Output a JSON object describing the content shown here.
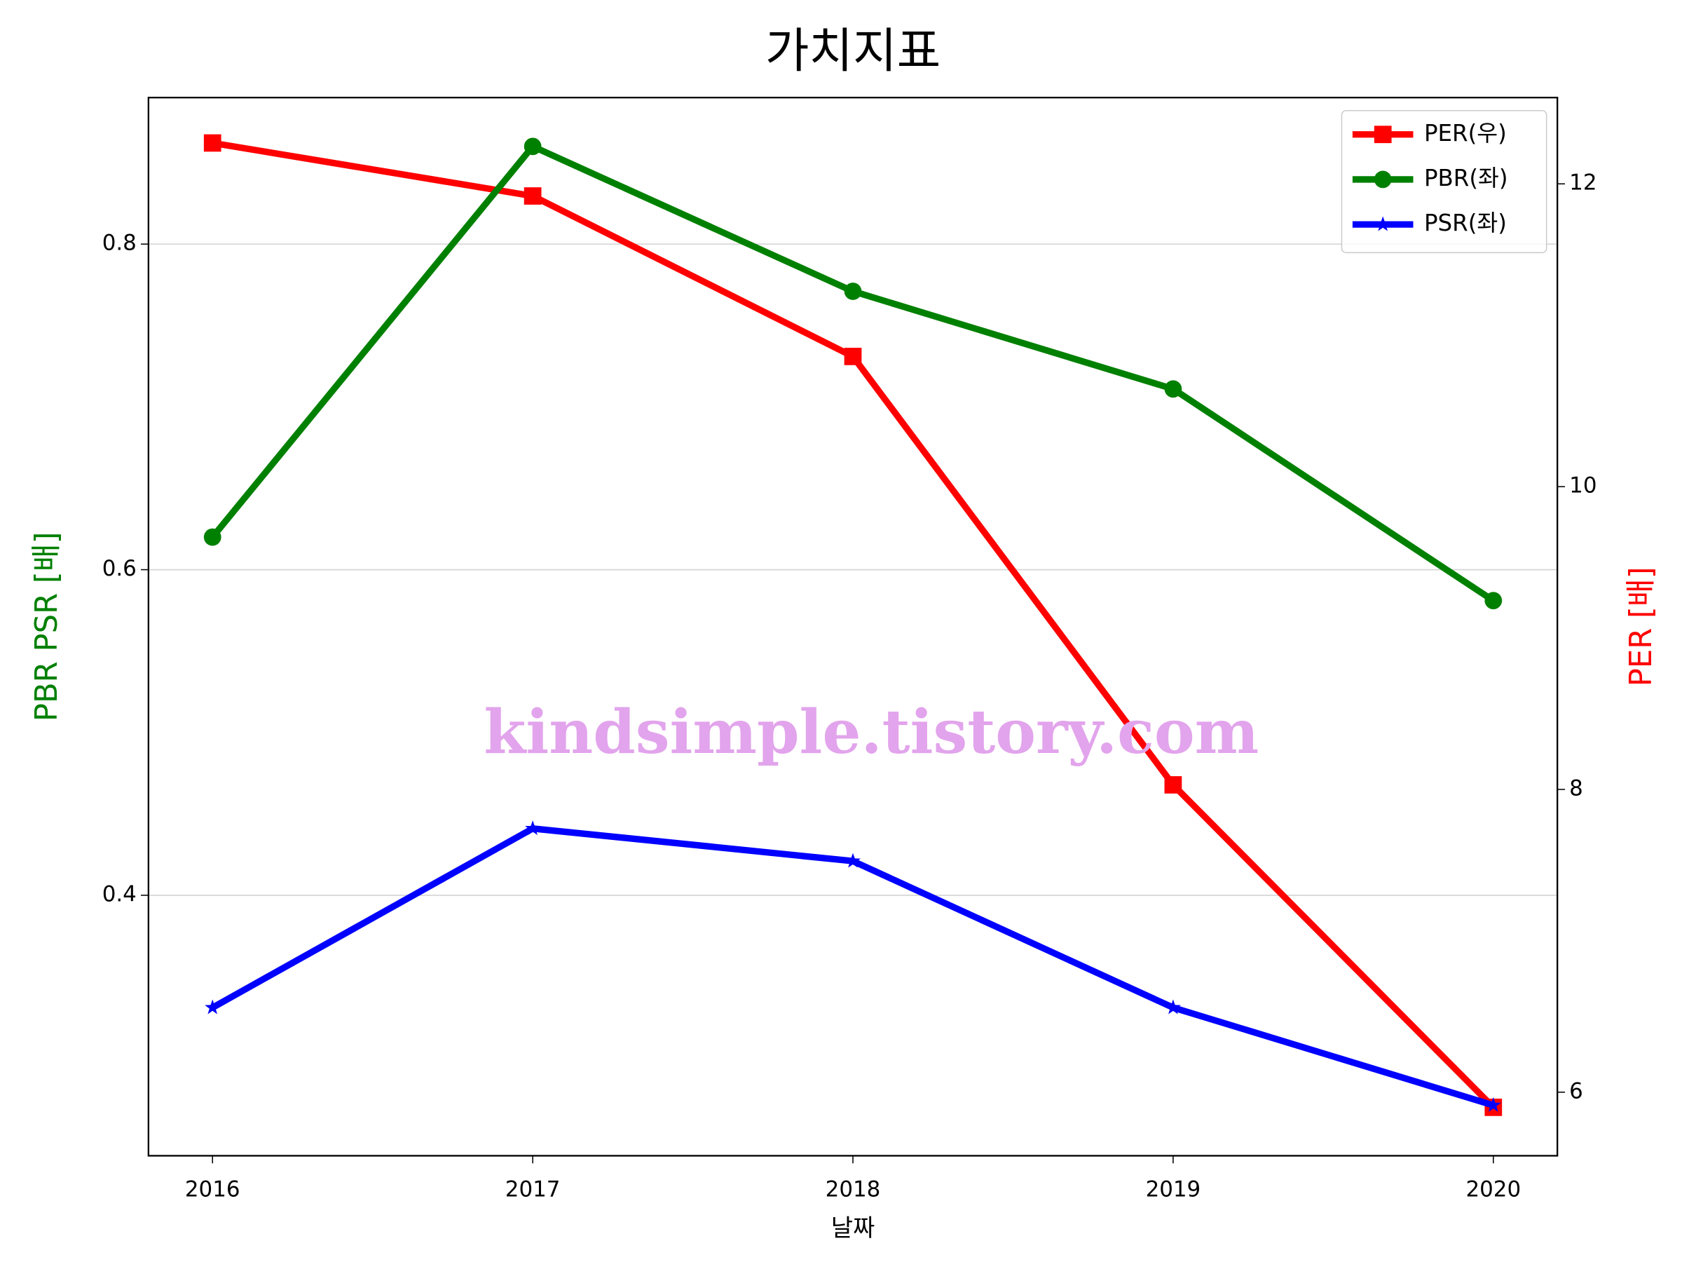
{
  "chart_data": {
    "type": "line",
    "title": "가치지표",
    "xlabel": "날짜",
    "ylabel": "PBR PSR [배]",
    "y2label": "PER [배]",
    "watermark": "kindsimple.tistory.com",
    "x": [
      2016,
      2017,
      2018,
      2019,
      2020
    ],
    "xlim": [
      2015.8,
      2020.2
    ],
    "xticks": [
      2016,
      2017,
      2018,
      2019,
      2020
    ],
    "ylim": [
      0.24,
      0.89
    ],
    "yticks": [
      0.4,
      0.6,
      0.8
    ],
    "y2lim": [
      5.58,
      12.57
    ],
    "y2ticks": [
      6,
      8,
      10,
      12
    ],
    "grid": true,
    "legend": "upper right",
    "series": [
      {
        "name": "PER(우)",
        "color": "#ff0000",
        "marker": "square",
        "axis": "y2",
        "values": [
          12.27,
          11.92,
          10.86,
          8.03,
          5.9
        ]
      },
      {
        "name": "PBR(좌)",
        "color": "#008000",
        "marker": "circle",
        "values": [
          0.62,
          0.86,
          0.771,
          0.711,
          0.581
        ]
      },
      {
        "name": "PSR(좌)",
        "color": "#0000ff",
        "marker": "star",
        "values": [
          0.331,
          0.441,
          0.421,
          0.331,
          0.271
        ]
      }
    ]
  }
}
